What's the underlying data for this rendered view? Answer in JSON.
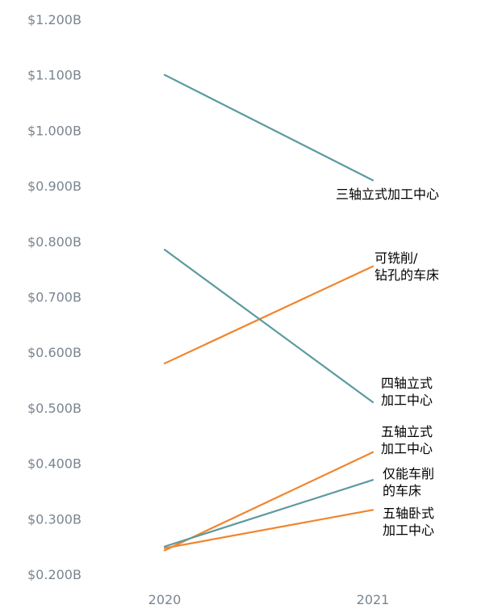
{
  "chart_data": {
    "type": "line",
    "x": [
      "2020",
      "2021"
    ],
    "ylim": [
      0.2,
      1.2
    ],
    "yticks": [
      "$1.200B",
      "$1.100B",
      "$1.000B",
      "$0.900B",
      "$0.800B",
      "$0.700B",
      "$0.600B",
      "$0.500B",
      "$0.400B",
      "$0.300B",
      "$0.200B"
    ],
    "ytick_values": [
      1.2,
      1.1,
      1.0,
      0.9,
      0.8,
      0.7,
      0.6,
      0.5,
      0.4,
      0.3,
      0.2
    ],
    "grid": false,
    "legend": "none",
    "series": [
      {
        "name": "三轴立式加工中心",
        "label_lines": [
          "三轴立式加工中心"
        ],
        "values": [
          1.1,
          0.91
        ],
        "color": "#5b9aa0"
      },
      {
        "name": "可铣削/钻孔的车床",
        "label_lines": [
          "可铣削/",
          "钻孔的车床"
        ],
        "values": [
          0.58,
          0.755
        ],
        "color": "#f0852d"
      },
      {
        "name": "四轴立式加工中心",
        "label_lines": [
          "四轴立式",
          "加工中心"
        ],
        "values": [
          0.785,
          0.51
        ],
        "color": "#5b9aa0"
      },
      {
        "name": "五轴立式加工中心",
        "label_lines": [
          "五轴立式",
          "加工中心"
        ],
        "values": [
          0.243,
          0.42
        ],
        "color": "#f0852d"
      },
      {
        "name": "仅能车削的车床",
        "label_lines": [
          "仅能车削",
          "的车床"
        ],
        "values": [
          0.25,
          0.37
        ],
        "color": "#5b9aa0"
      },
      {
        "name": "五轴卧式加工中心",
        "label_lines": [
          "五轴卧式",
          "加工中心"
        ],
        "values": [
          0.247,
          0.316
        ],
        "color": "#f0852d"
      }
    ]
  }
}
